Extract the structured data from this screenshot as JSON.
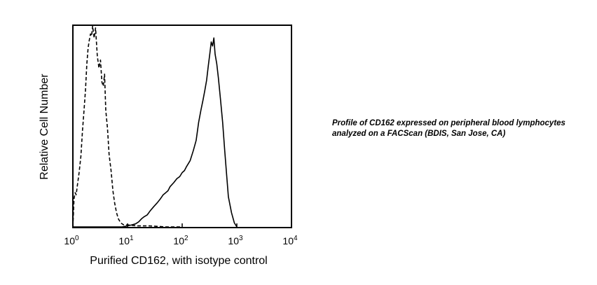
{
  "chart_data": {
    "type": "line",
    "title": "",
    "xlabel": "Purified CD162, with isotype control",
    "ylabel": "Relative Cell Number",
    "xscale": "log",
    "xlim": [
      1,
      10000
    ],
    "ylim": [
      0,
      100
    ],
    "grid": false,
    "legend": "none",
    "x_ticks": [
      {
        "base": "10",
        "exp": "0",
        "value": 1
      },
      {
        "base": "10",
        "exp": "1",
        "value": 10
      },
      {
        "base": "10",
        "exp": "2",
        "value": 100
      },
      {
        "base": "10",
        "exp": "3",
        "value": 1000
      },
      {
        "base": "10",
        "exp": "4",
        "value": 10000
      }
    ],
    "series": [
      {
        "style": "dashed",
        "color": "#000000",
        "x": [
          1.0,
          1.05,
          1.1,
          1.15,
          1.2,
          1.3,
          1.4,
          1.5,
          1.6,
          1.7,
          1.8,
          1.9,
          2.0,
          2.1,
          2.2,
          2.3,
          2.45,
          2.6,
          2.8,
          3.0,
          3.2,
          3.4,
          3.6,
          3.8,
          4.0,
          4.3,
          4.6,
          5.0,
          5.4,
          5.8,
          6.3,
          6.8,
          7.5,
          8.5,
          10,
          15,
          25,
          50,
          100
        ],
        "y": [
          0,
          14,
          17,
          16,
          20,
          27,
          35,
          48,
          58,
          68,
          81,
          89,
          93,
          96,
          95,
          100,
          94,
          99,
          85,
          79,
          83,
          72,
          70,
          76,
          58,
          49,
          36,
          28,
          18,
          12,
          7,
          4,
          2,
          1,
          1,
          0.5,
          0.5,
          0,
          0
        ]
      },
      {
        "style": "solid",
        "color": "#000000",
        "x": [
          1.0,
          2.0,
          4.0,
          8.0,
          10,
          12,
          14,
          16,
          18,
          20,
          23,
          26,
          30,
          35,
          40,
          45,
          50,
          55,
          60,
          70,
          80,
          90,
          100,
          110,
          120,
          140,
          160,
          180,
          200,
          220,
          240,
          260,
          280,
          300,
          320,
          340,
          360,
          380,
          400,
          430,
          460,
          500,
          550,
          600,
          650,
          700,
          800,
          900,
          1000
        ],
        "y": [
          0,
          0,
          0,
          0,
          0.5,
          1,
          1.5,
          2.5,
          4,
          5,
          6,
          8,
          10,
          12,
          14,
          16,
          17,
          18,
          20,
          22,
          24,
          25,
          27,
          28,
          30,
          33,
          38,
          43,
          52,
          58,
          63,
          68,
          73,
          80,
          86,
          92,
          90,
          94,
          86,
          81,
          74,
          64,
          52,
          38,
          26,
          15,
          7,
          2,
          0
        ]
      }
    ]
  },
  "caption": "Profile of CD162 expressed on peripheral blood lymphocytes analyzed on a FACScan (BDIS, San Jose, CA)"
}
